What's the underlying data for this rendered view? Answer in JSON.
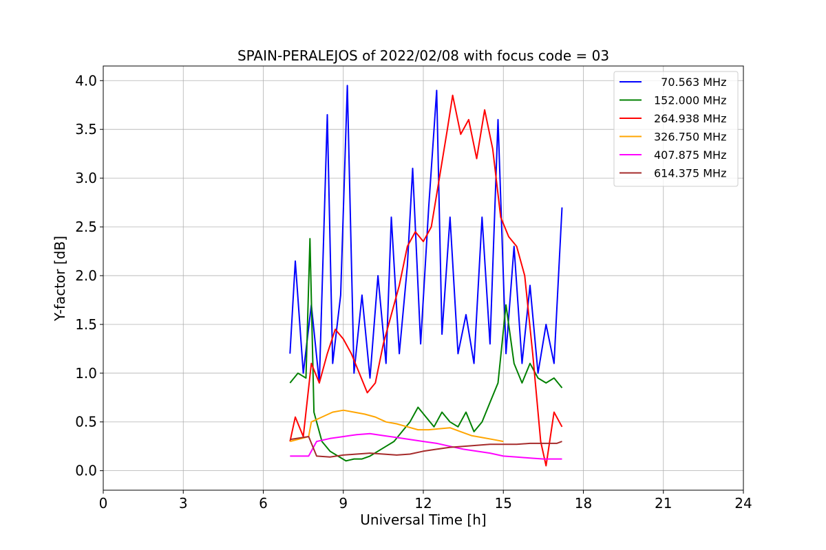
{
  "chart_data": {
    "type": "line",
    "title": "SPAIN-PERALEJOS of 2022/02/08 with focus code = 03",
    "xlabel": "Universal Time [h]",
    "ylabel": "Y-factor [dB]",
    "xlim": [
      0,
      24
    ],
    "ylim": [
      -0.2,
      4.15
    ],
    "xticks": [
      0,
      3,
      6,
      9,
      12,
      15,
      18,
      21,
      24
    ],
    "xtick_labels": [
      "0",
      "3",
      "6",
      "9",
      "12",
      "15",
      "18",
      "21",
      "24"
    ],
    "yticks": [
      0.0,
      0.5,
      1.0,
      1.5,
      2.0,
      2.5,
      3.0,
      3.5,
      4.0
    ],
    "ytick_labels": [
      "0.0",
      "0.5",
      "1.0",
      "1.5",
      "2.0",
      "2.5",
      "3.0",
      "3.5",
      "4.0"
    ],
    "grid": true,
    "legend_position": "top-right",
    "series": [
      {
        "name": "  70.563 MHz",
        "color": "#0000ff",
        "x": [
          7.0,
          7.2,
          7.5,
          7.8,
          8.1,
          8.4,
          8.6,
          8.9,
          9.15,
          9.4,
          9.7,
          10.0,
          10.3,
          10.6,
          10.8,
          11.1,
          11.4,
          11.6,
          11.9,
          12.2,
          12.5,
          12.7,
          13.0,
          13.3,
          13.6,
          13.9,
          14.2,
          14.5,
          14.8,
          15.1,
          15.4,
          15.7,
          16.0,
          16.3,
          16.6,
          16.9,
          17.2
        ],
        "y": [
          1.2,
          2.15,
          1.0,
          1.7,
          0.9,
          3.65,
          1.1,
          1.8,
          3.95,
          1.0,
          1.8,
          0.95,
          2.0,
          1.1,
          2.6,
          1.2,
          2.1,
          3.1,
          1.3,
          2.7,
          3.9,
          1.4,
          2.6,
          1.2,
          1.6,
          1.1,
          2.6,
          1.3,
          3.6,
          1.2,
          2.3,
          1.1,
          1.9,
          1.0,
          1.5,
          1.1,
          2.7
        ]
      },
      {
        "name": "152.000 MHz",
        "color": "#008000",
        "x": [
          7.0,
          7.3,
          7.6,
          7.75,
          7.9,
          8.2,
          8.5,
          8.8,
          9.1,
          9.4,
          9.7,
          10.0,
          10.3,
          10.6,
          10.9,
          11.2,
          11.5,
          11.8,
          12.1,
          12.4,
          12.7,
          13.0,
          13.3,
          13.6,
          13.9,
          14.2,
          14.5,
          14.8,
          15.1,
          15.4,
          15.7,
          16.0,
          16.3,
          16.6,
          16.9,
          17.2
        ],
        "y": [
          0.9,
          1.0,
          0.95,
          2.38,
          0.6,
          0.3,
          0.2,
          0.15,
          0.1,
          0.12,
          0.12,
          0.15,
          0.2,
          0.25,
          0.3,
          0.4,
          0.5,
          0.65,
          0.55,
          0.45,
          0.6,
          0.5,
          0.45,
          0.6,
          0.4,
          0.5,
          0.7,
          0.9,
          1.7,
          1.1,
          0.9,
          1.1,
          0.95,
          0.9,
          0.95,
          0.85
        ]
      },
      {
        "name": "264.938 MHz",
        "color": "#ff0000",
        "x": [
          7.0,
          7.2,
          7.5,
          7.8,
          8.1,
          8.4,
          8.7,
          9.0,
          9.3,
          9.6,
          9.9,
          10.2,
          10.5,
          10.8,
          11.1,
          11.4,
          11.7,
          12.0,
          12.3,
          12.6,
          12.9,
          13.1,
          13.4,
          13.7,
          14.0,
          14.3,
          14.6,
          14.9,
          15.2,
          15.5,
          15.8,
          16.1,
          16.4,
          16.6,
          16.9,
          17.2
        ],
        "y": [
          0.3,
          0.55,
          0.35,
          1.1,
          0.9,
          1.2,
          1.45,
          1.35,
          1.2,
          1.0,
          0.8,
          0.9,
          1.3,
          1.6,
          1.9,
          2.3,
          2.45,
          2.35,
          2.5,
          3.0,
          3.5,
          3.85,
          3.45,
          3.6,
          3.2,
          3.7,
          3.3,
          2.6,
          2.4,
          2.3,
          2.0,
          1.2,
          0.3,
          0.05,
          0.6,
          0.45
        ]
      },
      {
        "name": "326.750 MHz",
        "color": "#ffa500",
        "x": [
          7.0,
          7.7,
          7.8,
          8.2,
          8.6,
          9.0,
          9.4,
          9.8,
          10.2,
          10.6,
          11.0,
          11.4,
          11.8,
          12.2,
          12.6,
          13.0,
          13.4,
          13.8,
          14.2,
          14.6,
          15.0
        ],
        "y": [
          0.3,
          0.35,
          0.5,
          0.55,
          0.6,
          0.62,
          0.6,
          0.58,
          0.55,
          0.5,
          0.48,
          0.45,
          0.42,
          0.42,
          0.43,
          0.44,
          0.4,
          0.36,
          0.34,
          0.32,
          0.3
        ]
      },
      {
        "name": "407.875 MHz",
        "color": "#ff00ff",
        "x": [
          7.0,
          7.7,
          8.0,
          8.5,
          9.0,
          9.5,
          10.0,
          10.5,
          11.0,
          11.5,
          12.0,
          12.5,
          13.0,
          13.5,
          14.0,
          14.5,
          15.0,
          15.5,
          16.0,
          16.5,
          17.0,
          17.2
        ],
        "y": [
          0.15,
          0.15,
          0.3,
          0.33,
          0.35,
          0.37,
          0.38,
          0.36,
          0.34,
          0.32,
          0.3,
          0.28,
          0.25,
          0.22,
          0.2,
          0.18,
          0.15,
          0.14,
          0.13,
          0.12,
          0.12,
          0.12
        ]
      },
      {
        "name": "614.375 MHz",
        "color": "#a52a2a",
        "x": [
          7.0,
          7.7,
          8.0,
          8.5,
          9.0,
          9.5,
          10.0,
          10.5,
          11.0,
          11.5,
          12.0,
          12.5,
          13.0,
          13.5,
          14.0,
          14.5,
          15.0,
          15.5,
          16.0,
          16.5,
          17.0,
          17.2
        ],
        "y": [
          0.32,
          0.35,
          0.15,
          0.14,
          0.16,
          0.17,
          0.18,
          0.17,
          0.16,
          0.17,
          0.2,
          0.22,
          0.24,
          0.25,
          0.26,
          0.27,
          0.27,
          0.27,
          0.28,
          0.28,
          0.28,
          0.3
        ]
      }
    ]
  }
}
